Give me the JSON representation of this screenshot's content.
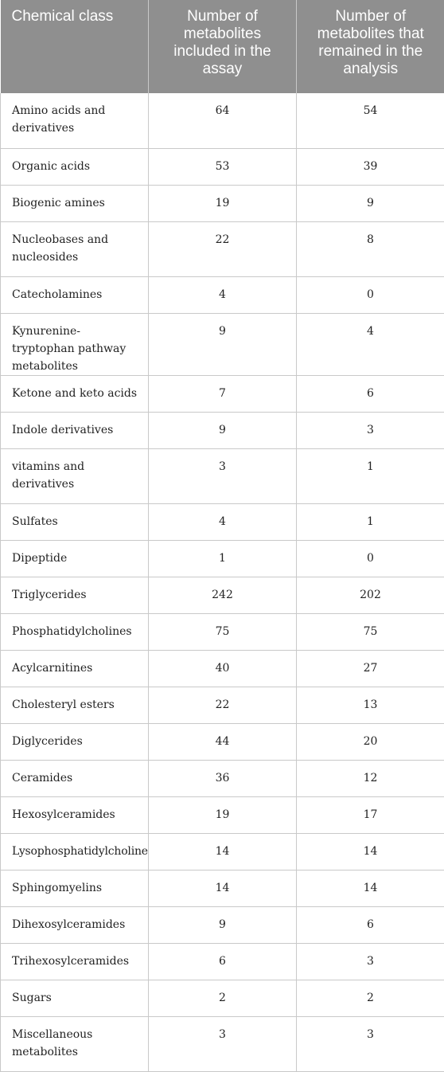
{
  "table": {
    "headers": [
      "Chemical class",
      "Number of metabolites included in the assay",
      "Number of metabolites that remained in the analysis"
    ],
    "rows": [
      {
        "class": "Amino acids and derivatives",
        "included": "64",
        "remained": "54"
      },
      {
        "class": "Organic acids",
        "included": "53",
        "remained": "39"
      },
      {
        "class": "Biogenic amines",
        "included": "19",
        "remained": "9"
      },
      {
        "class": "Nucleobases and nucleosides",
        "included": "22",
        "remained": "8"
      },
      {
        "class": "Catecholamines",
        "included": "4",
        "remained": "0"
      },
      {
        "class": "Kynurenine-tryptophan pathway metabolites",
        "included": "9",
        "remained": "4"
      },
      {
        "class": "Ketone and keto acids",
        "included": "7",
        "remained": "6"
      },
      {
        "class": "Indole derivatives",
        "included": "9",
        "remained": "3"
      },
      {
        "class": "vitamins and derivatives",
        "included": "3",
        "remained": "1"
      },
      {
        "class": "Sulfates",
        "included": "4",
        "remained": "1"
      },
      {
        "class": "Dipeptide",
        "included": "1",
        "remained": "0"
      },
      {
        "class": "Triglycerides",
        "included": "242",
        "remained": "202"
      },
      {
        "class": "Phosphatidylcholines",
        "included": "75",
        "remained": "75"
      },
      {
        "class": "Acylcarnitines",
        "included": "40",
        "remained": "27"
      },
      {
        "class": "Cholesteryl esters",
        "included": "22",
        "remained": "13"
      },
      {
        "class": "Diglycerides",
        "included": "44",
        "remained": "20"
      },
      {
        "class": "Ceramides",
        "included": "36",
        "remained": "12"
      },
      {
        "class": "Hexosylceramides",
        "included": "19",
        "remained": "17"
      },
      {
        "class": "Lysophosphatidylcholines",
        "included": "14",
        "remained": "14"
      },
      {
        "class": "Sphingomyelins",
        "included": "14",
        "remained": "14"
      },
      {
        "class": "Dihexosylceramides",
        "included": "9",
        "remained": "6"
      },
      {
        "class": "Trihexosylceramides",
        "included": "6",
        "remained": "3"
      },
      {
        "class": "Sugars",
        "included": "2",
        "remained": "2"
      },
      {
        "class": "Miscellaneous metabolites",
        "included": "3",
        "remained": "3"
      }
    ]
  },
  "colors": {
    "header_bg": "#8f8f8f",
    "header_text": "#ffffff",
    "grid": "#c9c9c9"
  }
}
